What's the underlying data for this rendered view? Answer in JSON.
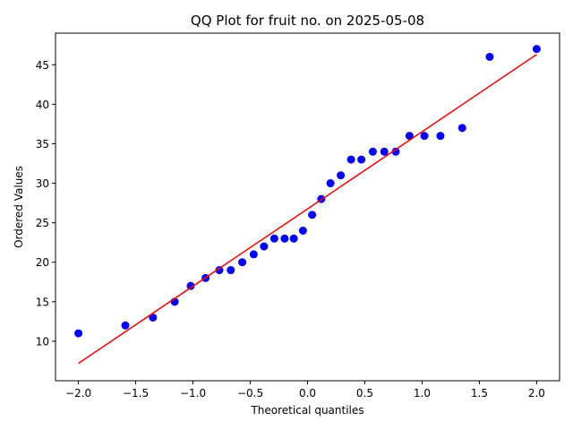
{
  "chart_data": {
    "type": "scatter",
    "title": "QQ Plot for fruit no. on 2025-05-08",
    "xlabel": "Theoretical quantiles",
    "ylabel": "Ordered Values",
    "xlim": [
      -2.2,
      2.2
    ],
    "ylim": [
      5.0,
      49.0
    ],
    "xticks": [
      -2.0,
      -1.5,
      -1.0,
      -0.5,
      0.0,
      0.5,
      1.0,
      1.5,
      2.0
    ],
    "xtick_labels": [
      "−2.0",
      "−1.5",
      "−1.0",
      "−0.5",
      "0.0",
      "0.5",
      "1.0",
      "1.5",
      "2.0"
    ],
    "yticks": [
      10,
      15,
      20,
      25,
      30,
      35,
      40,
      45
    ],
    "ytick_labels": [
      "10",
      "15",
      "20",
      "25",
      "30",
      "35",
      "40",
      "45"
    ],
    "grid": false,
    "point_color": "#0000ff",
    "line_color": "#ff0000",
    "points": [
      {
        "x": -2.0,
        "y": 11
      },
      {
        "x": -1.59,
        "y": 12
      },
      {
        "x": -1.35,
        "y": 13
      },
      {
        "x": -1.16,
        "y": 15
      },
      {
        "x": -1.02,
        "y": 17
      },
      {
        "x": -0.89,
        "y": 18
      },
      {
        "x": -0.77,
        "y": 19
      },
      {
        "x": -0.67,
        "y": 19
      },
      {
        "x": -0.57,
        "y": 20
      },
      {
        "x": -0.47,
        "y": 21
      },
      {
        "x": -0.38,
        "y": 22
      },
      {
        "x": -0.29,
        "y": 23
      },
      {
        "x": -0.2,
        "y": 23
      },
      {
        "x": -0.12,
        "y": 23
      },
      {
        "x": -0.04,
        "y": 24
      },
      {
        "x": 0.04,
        "y": 26
      },
      {
        "x": 0.12,
        "y": 28
      },
      {
        "x": 0.2,
        "y": 30
      },
      {
        "x": 0.29,
        "y": 31
      },
      {
        "x": 0.38,
        "y": 33
      },
      {
        "x": 0.47,
        "y": 33
      },
      {
        "x": 0.57,
        "y": 34
      },
      {
        "x": 0.67,
        "y": 34
      },
      {
        "x": 0.77,
        "y": 34
      },
      {
        "x": 0.89,
        "y": 36
      },
      {
        "x": 1.02,
        "y": 36
      },
      {
        "x": 1.16,
        "y": 36
      },
      {
        "x": 1.35,
        "y": 37
      },
      {
        "x": 1.59,
        "y": 46
      },
      {
        "x": 2.0,
        "y": 47
      }
    ],
    "fit_line": {
      "x": [
        -2.0,
        2.0
      ],
      "y": [
        7.2,
        46.3
      ]
    }
  }
}
